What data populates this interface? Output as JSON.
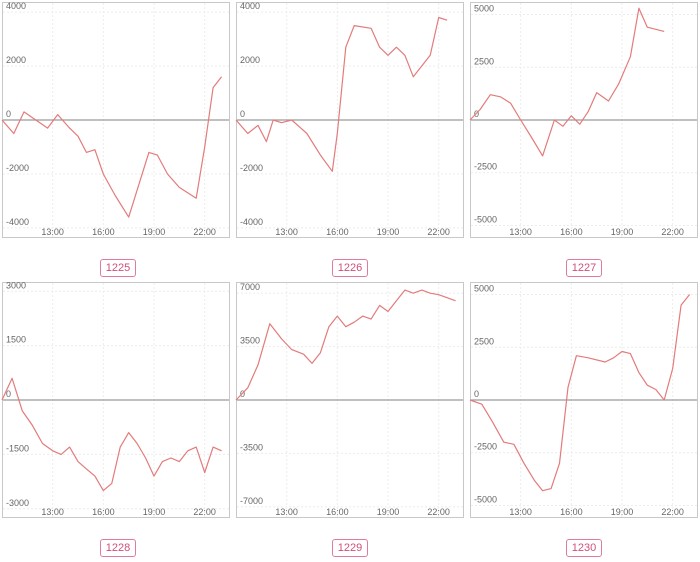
{
  "charts": [
    {
      "label": "1225",
      "chart_data": {
        "type": "line",
        "title": "1225",
        "x_tick_labels": [
          "13:00",
          "16:00",
          "19:00",
          "22:00"
        ],
        "x_ticks": [
          13,
          16,
          19,
          22
        ],
        "xlim": [
          10,
          23.5
        ],
        "ylim": [
          -4300,
          4300
        ],
        "y_ticks": [
          4000,
          2000,
          0,
          -2000,
          -4000
        ],
        "y_tick_labels": [
          "4000",
          "2000",
          "0",
          "-2000",
          "-4000"
        ],
        "x": [
          10,
          10.7,
          11.3,
          12,
          12.7,
          13.3,
          14,
          14.5,
          15,
          15.5,
          16,
          16.7,
          17.5,
          18.7,
          19.2,
          19.8,
          20.5,
          21.5,
          22,
          22.5,
          23
        ],
        "y": [
          0,
          -500,
          300,
          0,
          -300,
          200,
          -300,
          -600,
          -1200,
          -1100,
          -2000,
          -2800,
          -3600,
          -1200,
          -1300,
          -2000,
          -2500,
          -2900,
          -1000,
          1200,
          1600
        ]
      }
    },
    {
      "label": "1226",
      "chart_data": {
        "type": "line",
        "title": "1226",
        "x_tick_labels": [
          "13:00",
          "16:00",
          "19:00",
          "22:00"
        ],
        "x_ticks": [
          13,
          16,
          19,
          22
        ],
        "xlim": [
          10,
          23.5
        ],
        "ylim": [
          -4300,
          4300
        ],
        "y_ticks": [
          4000,
          2000,
          0,
          -2000,
          -4000
        ],
        "y_tick_labels": [
          "4000",
          "2000",
          "0",
          "-2000",
          "-4000"
        ],
        "x": [
          10,
          10.7,
          11.3,
          11.8,
          12.2,
          12.7,
          13.3,
          14.2,
          15,
          15.7,
          16,
          16.5,
          17,
          18,
          18.5,
          19,
          19.5,
          20,
          20.5,
          21.5,
          22,
          22.5
        ],
        "y": [
          0,
          -500,
          -200,
          -800,
          0,
          -100,
          0,
          -500,
          -1300,
          -1900,
          -500,
          2700,
          3500,
          3400,
          2700,
          2400,
          2700,
          2400,
          1600,
          2400,
          3800,
          3700
        ]
      }
    },
    {
      "label": "1227",
      "chart_data": {
        "type": "line",
        "title": "1227",
        "x_tick_labels": [
          "13:00",
          "16:00",
          "19:00",
          "22:00"
        ],
        "x_ticks": [
          13,
          16,
          19,
          22
        ],
        "xlim": [
          10,
          23.5
        ],
        "ylim": [
          -5500,
          5500
        ],
        "y_ticks": [
          5000,
          2500,
          0,
          -2500,
          -5000
        ],
        "y_tick_labels": [
          "5000",
          "2500",
          "0",
          "-2500",
          "-5000"
        ],
        "x": [
          10,
          10.6,
          11.2,
          11.8,
          12.4,
          13,
          13.7,
          14.3,
          15,
          15.5,
          16,
          16.5,
          17,
          17.5,
          18.2,
          18.8,
          19.5,
          20,
          20.5,
          21.5
        ],
        "y": [
          0,
          500,
          1200,
          1100,
          800,
          0,
          -900,
          -1700,
          0,
          -300,
          200,
          -200,
          400,
          1300,
          900,
          1700,
          3000,
          5300,
          4400,
          4200
        ]
      }
    },
    {
      "label": "1228",
      "chart_data": {
        "type": "line",
        "title": "1228",
        "x_tick_labels": [
          "13:00",
          "16:00",
          "19:00",
          "22:00"
        ],
        "x_ticks": [
          13,
          16,
          19,
          22
        ],
        "xlim": [
          10,
          23.5
        ],
        "ylim": [
          -3200,
          3200
        ],
        "y_ticks": [
          3000,
          1500,
          0,
          -1500,
          -3000
        ],
        "y_tick_labels": [
          "3000",
          "1500",
          "0",
          "-1500",
          "-3000"
        ],
        "x": [
          10,
          10.6,
          11.2,
          11.8,
          12.4,
          13,
          13.5,
          14,
          14.5,
          15,
          15.5,
          16,
          16.5,
          17,
          17.5,
          18,
          18.5,
          19,
          19.5,
          20,
          20.5,
          21,
          21.5,
          22,
          22.5,
          23
        ],
        "y": [
          0,
          600,
          -300,
          -700,
          -1200,
          -1400,
          -1500,
          -1300,
          -1700,
          -1900,
          -2100,
          -2500,
          -2300,
          -1300,
          -900,
          -1200,
          -1600,
          -2100,
          -1700,
          -1600,
          -1700,
          -1400,
          -1300,
          -2000,
          -1300,
          -1400
        ]
      }
    },
    {
      "label": "1229",
      "chart_data": {
        "type": "line",
        "title": "1229",
        "x_tick_labels": [
          "13:00",
          "16:00",
          "19:00",
          "22:00"
        ],
        "x_ticks": [
          13,
          16,
          19,
          22
        ],
        "xlim": [
          10,
          23.5
        ],
        "ylim": [
          -7600,
          7600
        ],
        "y_ticks": [
          7000,
          3500,
          0,
          -3500,
          -7000
        ],
        "y_tick_labels": [
          "7000",
          "3500",
          "0",
          "-3500",
          "-7000"
        ],
        "x": [
          10,
          10.7,
          11.3,
          12,
          12.7,
          13.3,
          14,
          14.5,
          15,
          15.5,
          16,
          16.5,
          17,
          17.5,
          18,
          18.5,
          19,
          19.5,
          20,
          20.5,
          21,
          21.5,
          22,
          22.5,
          23
        ],
        "y": [
          0,
          800,
          2300,
          5000,
          4000,
          3300,
          3000,
          2400,
          3100,
          4800,
          5500,
          4800,
          5100,
          5500,
          5300,
          6200,
          5800,
          6500,
          7200,
          7000,
          7200,
          7000,
          6900,
          6700,
          6500
        ]
      }
    },
    {
      "label": "1230",
      "chart_data": {
        "type": "line",
        "title": "1230",
        "x_tick_labels": [
          "13:00",
          "16:00",
          "19:00",
          "22:00"
        ],
        "x_ticks": [
          13,
          16,
          19,
          22
        ],
        "xlim": [
          10,
          23.5
        ],
        "ylim": [
          -5500,
          5500
        ],
        "y_ticks": [
          5000,
          2500,
          0,
          -2500,
          -5000
        ],
        "y_tick_labels": [
          "5000",
          "2500",
          "0",
          "-2500",
          "-5000"
        ],
        "x": [
          10,
          10.7,
          11.3,
          12,
          12.6,
          13.2,
          13.8,
          14.3,
          14.8,
          15.3,
          15.8,
          16.3,
          17,
          18,
          18.5,
          19,
          19.5,
          20,
          20.5,
          21,
          21.5,
          22,
          22.5,
          23
        ],
        "y": [
          0,
          -200,
          -1000,
          -2000,
          -2100,
          -3000,
          -3800,
          -4300,
          -4200,
          -3000,
          600,
          2100,
          2000,
          1800,
          2000,
          2300,
          2200,
          1300,
          700,
          500,
          0,
          1500,
          4500,
          5000
        ]
      }
    }
  ]
}
